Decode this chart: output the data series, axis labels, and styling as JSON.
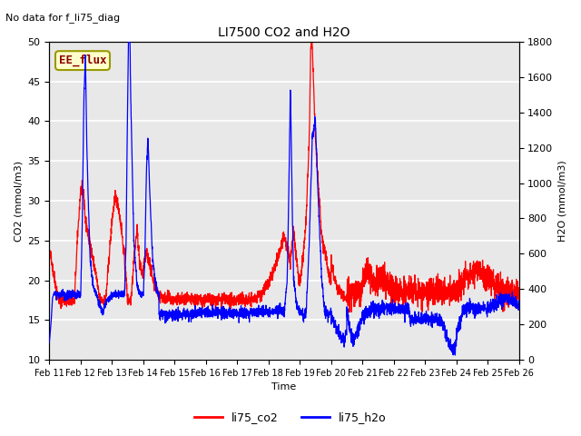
{
  "title": "LI7500 CO2 and H2O",
  "top_left_text": "No data for f_li75_diag",
  "annotation_text": "EE_flux",
  "xlabel": "Time",
  "ylabel_left": "CO2 (mmol/m3)",
  "ylabel_right": "H2O (mmol/m3)",
  "ylim_left": [
    10,
    50
  ],
  "ylim_right": [
    0,
    1800
  ],
  "yticks_left": [
    10,
    15,
    20,
    25,
    30,
    35,
    40,
    45,
    50
  ],
  "yticks_right": [
    0,
    200,
    400,
    600,
    800,
    1000,
    1200,
    1400,
    1600,
    1800
  ],
  "xtick_labels": [
    "Feb 11",
    "Feb 12",
    "Feb 13",
    "Feb 14",
    "Feb 15",
    "Feb 16",
    "Feb 17",
    "Feb 18",
    "Feb 19",
    "Feb 20",
    "Feb 21",
    "Feb 22",
    "Feb 23",
    "Feb 24",
    "Feb 25",
    "Feb 26"
  ],
  "legend_entries": [
    "li75_co2",
    "li75_h2o"
  ],
  "legend_colors": [
    "red",
    "blue"
  ],
  "axes_facecolor": "#e8e8e8",
  "grid_color": "white",
  "co2_color": "red",
  "h2o_color": "blue",
  "num_days": 15
}
